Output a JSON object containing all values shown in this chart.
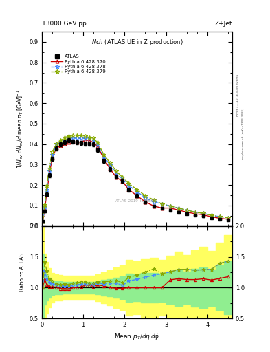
{
  "title_top": "13000 GeV pp",
  "title_top_right": "Z+Jet",
  "plot_title": "Nch (ATLAS UE in Z production)",
  "xlabel": "Mean $p_T$/d$\\eta$ d$\\phi$",
  "ylabel_main": "1/N$_{ev}$ dN$_{ev}$/d mean p$_T$ [GeV]$^{-1}$",
  "ylabel_ratio": "Ratio to ATLAS",
  "watermark": "ATLAS_2019_I1736531",
  "atlas_x": [
    0.02,
    0.07,
    0.12,
    0.18,
    0.25,
    0.35,
    0.45,
    0.55,
    0.65,
    0.75,
    0.85,
    0.95,
    1.05,
    1.15,
    1.25,
    1.35,
    1.5,
    1.65,
    1.8,
    1.95,
    2.1,
    2.3,
    2.5,
    2.7,
    2.9,
    3.1,
    3.3,
    3.5,
    3.7,
    3.9,
    4.1,
    4.3,
    4.5
  ],
  "atlas_y": [
    0.022,
    0.072,
    0.155,
    0.248,
    0.328,
    0.378,
    0.398,
    0.408,
    0.418,
    0.412,
    0.408,
    0.405,
    0.403,
    0.402,
    0.4,
    0.372,
    0.318,
    0.278,
    0.24,
    0.22,
    0.178,
    0.148,
    0.118,
    0.098,
    0.088,
    0.078,
    0.068,
    0.06,
    0.053,
    0.048,
    0.04,
    0.033,
    0.028
  ],
  "atlas_yerr": [
    0.003,
    0.005,
    0.008,
    0.01,
    0.01,
    0.01,
    0.01,
    0.01,
    0.01,
    0.01,
    0.01,
    0.01,
    0.01,
    0.01,
    0.01,
    0.01,
    0.01,
    0.01,
    0.01,
    0.01,
    0.01,
    0.008,
    0.007,
    0.006,
    0.005,
    0.005,
    0.005,
    0.004,
    0.004,
    0.004,
    0.003,
    0.003,
    0.003
  ],
  "py370_x": [
    0.02,
    0.07,
    0.12,
    0.18,
    0.25,
    0.35,
    0.45,
    0.55,
    0.65,
    0.75,
    0.85,
    0.95,
    1.05,
    1.15,
    1.25,
    1.35,
    1.5,
    1.65,
    1.8,
    1.95,
    2.1,
    2.3,
    2.5,
    2.7,
    2.9,
    3.1,
    3.3,
    3.5,
    3.7,
    3.9,
    4.1,
    4.3,
    4.5
  ],
  "py370_y": [
    0.022,
    0.082,
    0.162,
    0.252,
    0.332,
    0.382,
    0.392,
    0.402,
    0.41,
    0.412,
    0.41,
    0.41,
    0.42,
    0.418,
    0.408,
    0.388,
    0.328,
    0.278,
    0.238,
    0.218,
    0.178,
    0.148,
    0.118,
    0.098,
    0.088,
    0.088,
    0.078,
    0.068,
    0.06,
    0.055,
    0.045,
    0.038,
    0.033
  ],
  "py378_x": [
    0.02,
    0.07,
    0.12,
    0.18,
    0.25,
    0.35,
    0.45,
    0.55,
    0.65,
    0.75,
    0.85,
    0.95,
    1.05,
    1.15,
    1.25,
    1.35,
    1.5,
    1.65,
    1.8,
    1.95,
    2.1,
    2.3,
    2.5,
    2.7,
    2.9,
    3.1,
    3.3,
    3.5,
    3.7,
    3.9,
    4.1,
    4.3,
    4.5
  ],
  "py378_y": [
    0.022,
    0.092,
    0.178,
    0.268,
    0.348,
    0.398,
    0.41,
    0.42,
    0.428,
    0.43,
    0.428,
    0.428,
    0.428,
    0.428,
    0.418,
    0.4,
    0.338,
    0.298,
    0.258,
    0.228,
    0.198,
    0.168,
    0.138,
    0.118,
    0.108,
    0.098,
    0.088,
    0.078,
    0.068,
    0.062,
    0.052,
    0.046,
    0.04
  ],
  "py379_x": [
    0.02,
    0.07,
    0.12,
    0.18,
    0.25,
    0.35,
    0.45,
    0.55,
    0.65,
    0.75,
    0.85,
    0.95,
    1.05,
    1.15,
    1.25,
    1.35,
    1.5,
    1.65,
    1.8,
    1.95,
    2.1,
    2.3,
    2.5,
    2.7,
    2.9,
    3.1,
    3.3,
    3.5,
    3.7,
    3.9,
    4.1,
    4.3,
    4.5
  ],
  "py379_y": [
    0.022,
    0.102,
    0.198,
    0.282,
    0.362,
    0.402,
    0.418,
    0.432,
    0.44,
    0.442,
    0.442,
    0.442,
    0.44,
    0.432,
    0.428,
    0.408,
    0.348,
    0.308,
    0.268,
    0.238,
    0.208,
    0.178,
    0.148,
    0.128,
    0.108,
    0.098,
    0.088,
    0.078,
    0.068,
    0.062,
    0.052,
    0.046,
    0.04
  ],
  "ylim_main": [
    0.0,
    0.95
  ],
  "ylim_ratio": [
    0.5,
    2.0
  ],
  "xlim": [
    0.0,
    4.6
  ],
  "color_370": "#cc0000",
  "color_378": "#4488ff",
  "color_379": "#88aa00",
  "color_atlas": "#000000",
  "band_yellow": "#ffff60",
  "band_green": "#90ee90"
}
